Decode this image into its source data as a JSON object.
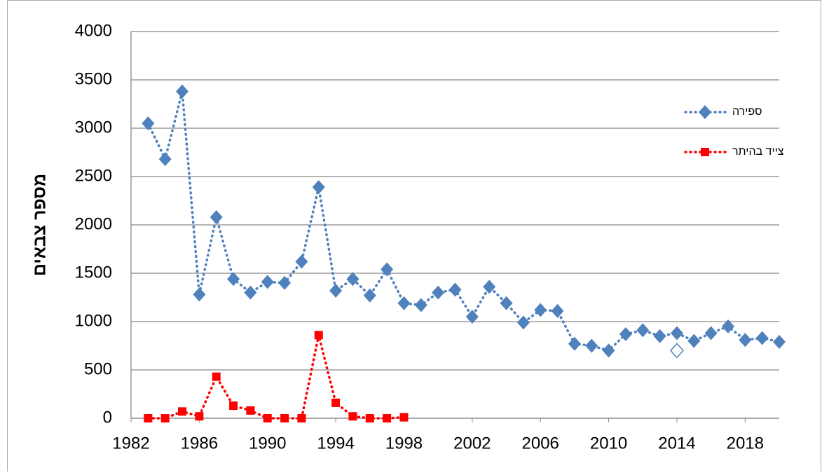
{
  "chart_data": {
    "type": "line",
    "y_label": "מספר צבאים",
    "xlim": [
      1982,
      2020
    ],
    "xticks": [
      1982,
      1986,
      1990,
      1994,
      1998,
      2002,
      2006,
      2010,
      2014,
      2018
    ],
    "ylim": [
      0,
      4000
    ],
    "yticks": [
      0,
      500,
      1000,
      1500,
      2000,
      2500,
      3000,
      3500,
      4000
    ],
    "grid": true,
    "legend": "top-right",
    "series": [
      {
        "name": "ספירה",
        "color": "#4f81bd",
        "marker": "diamond",
        "x": [
          1983,
          1984,
          1985,
          1986,
          1987,
          1988,
          1989,
          1990,
          1991,
          1992,
          1993,
          1994,
          1995,
          1996,
          1997,
          1998,
          1999,
          2000,
          2001,
          2002,
          2003,
          2004,
          2005,
          2006,
          2007,
          2008,
          2009,
          2010,
          2011,
          2012,
          2013,
          2014,
          2015,
          2016,
          2017,
          2018,
          2019,
          2020
        ],
        "values": [
          3050,
          2680,
          3380,
          1280,
          2080,
          1440,
          1300,
          1410,
          1400,
          1620,
          2390,
          1320,
          1440,
          1270,
          1540,
          1190,
          1170,
          1300,
          1330,
          1050,
          1360,
          1190,
          990,
          1120,
          1110,
          770,
          750,
          700,
          870,
          910,
          850,
          880,
          800,
          880,
          950,
          810,
          830,
          790
        ]
      },
      {
        "name": "צייד בהיתר",
        "color": "#ff0000",
        "marker": "square",
        "x": [
          1983,
          1984,
          1985,
          1986,
          1987,
          1988,
          1989,
          1990,
          1991,
          1992,
          1993,
          1994,
          1995,
          1996,
          1997,
          1998
        ],
        "values": [
          0,
          0,
          70,
          20,
          430,
          130,
          80,
          0,
          0,
          0,
          860,
          160,
          20,
          0,
          0,
          10
        ]
      },
      {
        "color": "#4f81bd",
        "marker": "hollow-diamond",
        "x": [
          2014
        ],
        "values": [
          700
        ]
      }
    ]
  }
}
